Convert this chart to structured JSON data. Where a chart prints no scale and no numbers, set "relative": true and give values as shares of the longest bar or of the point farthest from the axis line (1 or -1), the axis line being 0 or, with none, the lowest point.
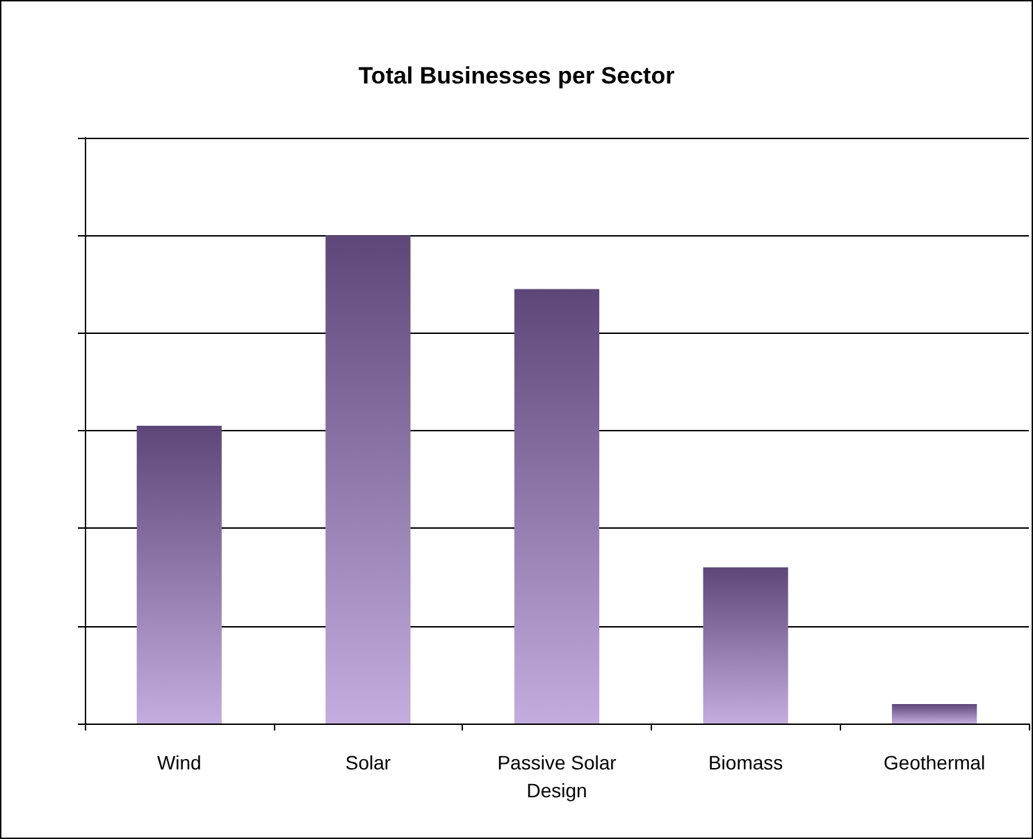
{
  "chart_data": {
    "type": "bar",
    "title": "Total Businesses per Sector",
    "categories": [
      "Wind",
      "Solar",
      "Passive Solar\nDesign",
      "Biomass",
      "Geothermal"
    ],
    "values": [
      0.61,
      1,
      0.89,
      0.32,
      0.04
    ],
    "color": "#9b77c8",
    "relative": true,
    "grid": "y"
  }
}
